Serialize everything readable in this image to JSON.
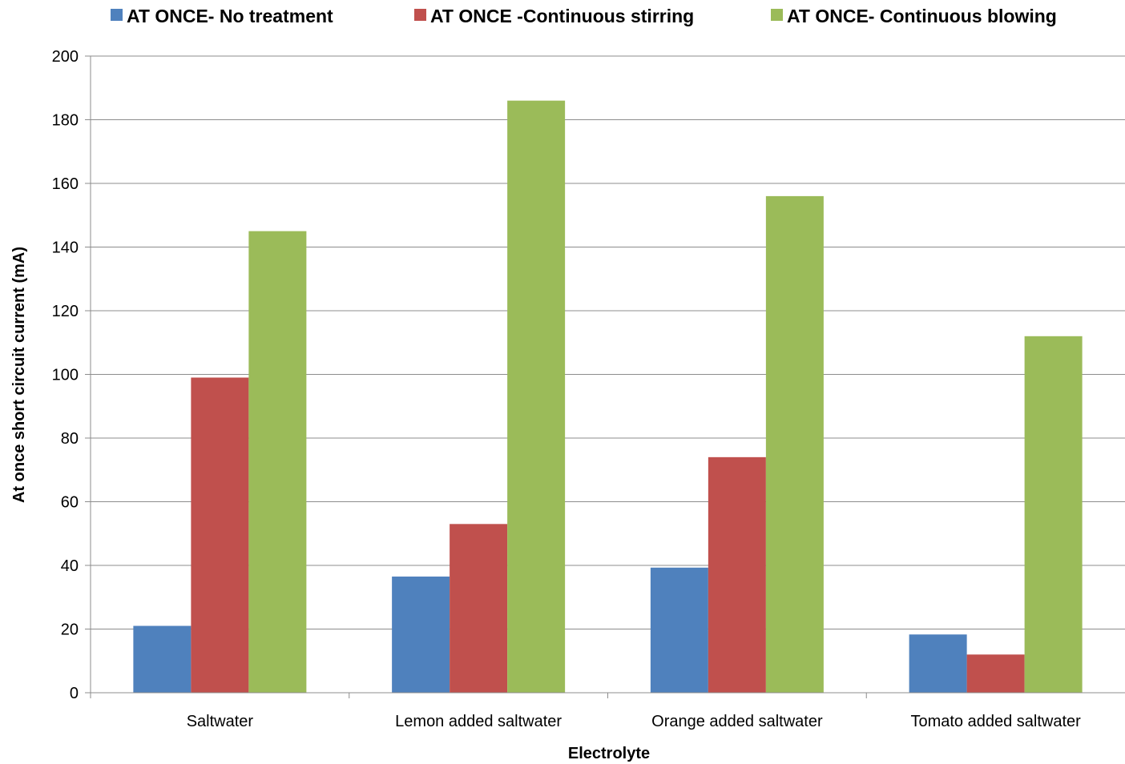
{
  "chart_data": {
    "type": "bar",
    "categories": [
      "Saltwater",
      "Lemon added saltwater",
      "Orange added saltwater",
      "Tomato added saltwater"
    ],
    "series": [
      {
        "name": "AT ONCE- No treatment",
        "color": "#4f81bd",
        "values": [
          21,
          36.5,
          39.3,
          18.3
        ]
      },
      {
        "name": "AT ONCE -Continuous stirring",
        "color": "#c0504d",
        "values": [
          99,
          53,
          74,
          12
        ]
      },
      {
        "name": "AT ONCE- Continuous blowing",
        "color": "#9bbb59",
        "values": [
          145,
          186,
          156,
          112
        ]
      }
    ],
    "title": "",
    "xlabel": "Electrolyte",
    "ylabel": "At once short circuit current (mA)",
    "ylim": [
      0,
      200
    ],
    "yticks": [
      0,
      20,
      40,
      60,
      80,
      100,
      120,
      140,
      160,
      180,
      200
    ],
    "grid": true,
    "legend_position": "top"
  }
}
